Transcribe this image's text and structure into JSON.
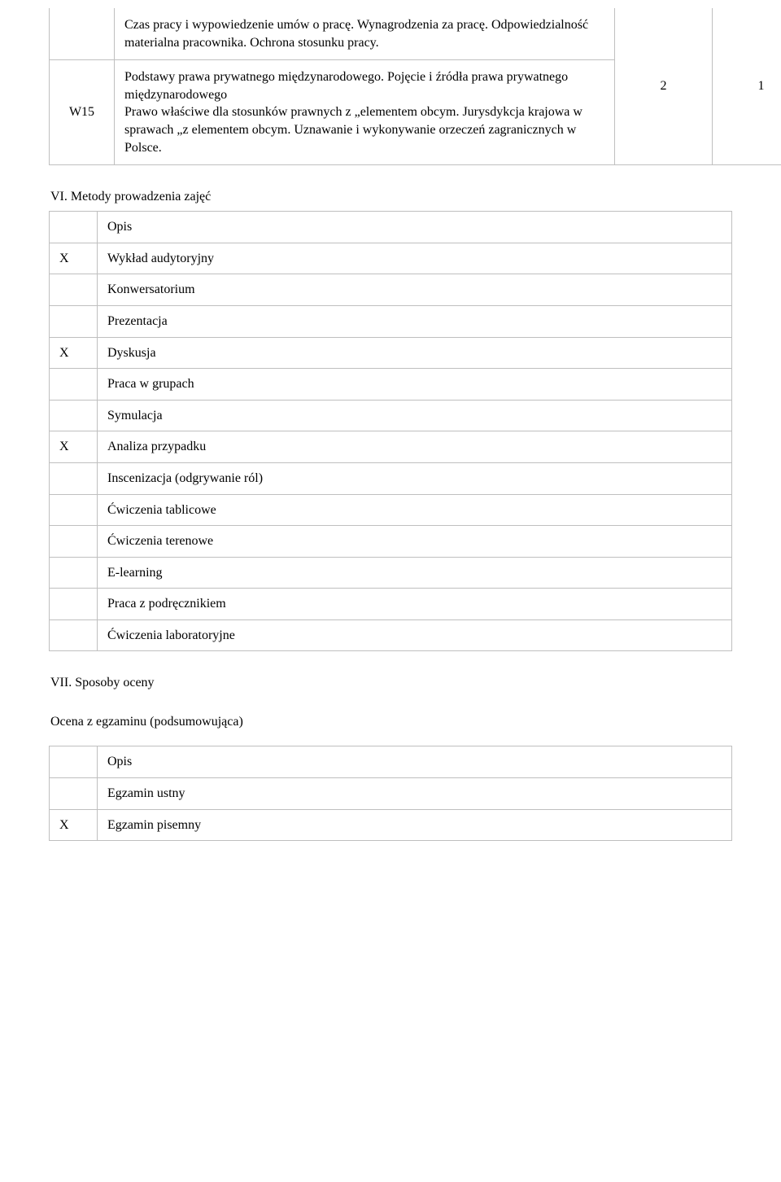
{
  "top_table": {
    "row1": {
      "code": "",
      "text": "Czas pracy i wypowiedzenie umów o pracę. Wynagrodzenia za pracę. Odpowiedzialność materialna pracownika. Ochrona stosunku pracy.",
      "c3": "",
      "c4": ""
    },
    "row2": {
      "code": "W15",
      "text": "Podstawy prawa prywatnego międzynarodowego. Pojęcie i źródła prawa prywatnego międzynarodowego\nPrawo właściwe dla stosunków prawnych z „elementem obcym. Jurysdykcja krajowa w sprawach „z elementem obcym. Uznawanie i wykonywanie orzeczeń zagranicznych w Polsce.",
      "c3": "2",
      "c4": "1"
    }
  },
  "section_vi_title": "VI. Metody prowadzenia zajęć",
  "methods": {
    "header": "Opis",
    "rows": [
      {
        "mark": "X",
        "label": "Wykład audytoryjny"
      },
      {
        "mark": "",
        "label": "Konwersatorium"
      },
      {
        "mark": "",
        "label": "Prezentacja"
      },
      {
        "mark": "X",
        "label": "Dyskusja"
      },
      {
        "mark": "",
        "label": "Praca w grupach"
      },
      {
        "mark": "",
        "label": "Symulacja"
      },
      {
        "mark": "X",
        "label": "Analiza przypadku"
      },
      {
        "mark": "",
        "label": "Inscenizacja (odgrywanie ról)"
      },
      {
        "mark": "",
        "label": "Ćwiczenia tablicowe"
      },
      {
        "mark": "",
        "label": "Ćwiczenia terenowe"
      },
      {
        "mark": "",
        "label": "E-learning"
      },
      {
        "mark": "",
        "label": "Praca z podręcznikiem"
      },
      {
        "mark": "",
        "label": "Ćwiczenia laboratoryjne"
      }
    ]
  },
  "section_vii_title": "VII. Sposoby oceny",
  "assessment_subtitle": "Ocena z egzaminu (podsumowująca)",
  "assessment": {
    "header": "Opis",
    "rows": [
      {
        "mark": "",
        "label": "Egzamin ustny"
      },
      {
        "mark": "X",
        "label": "Egzamin pisemny"
      }
    ]
  }
}
